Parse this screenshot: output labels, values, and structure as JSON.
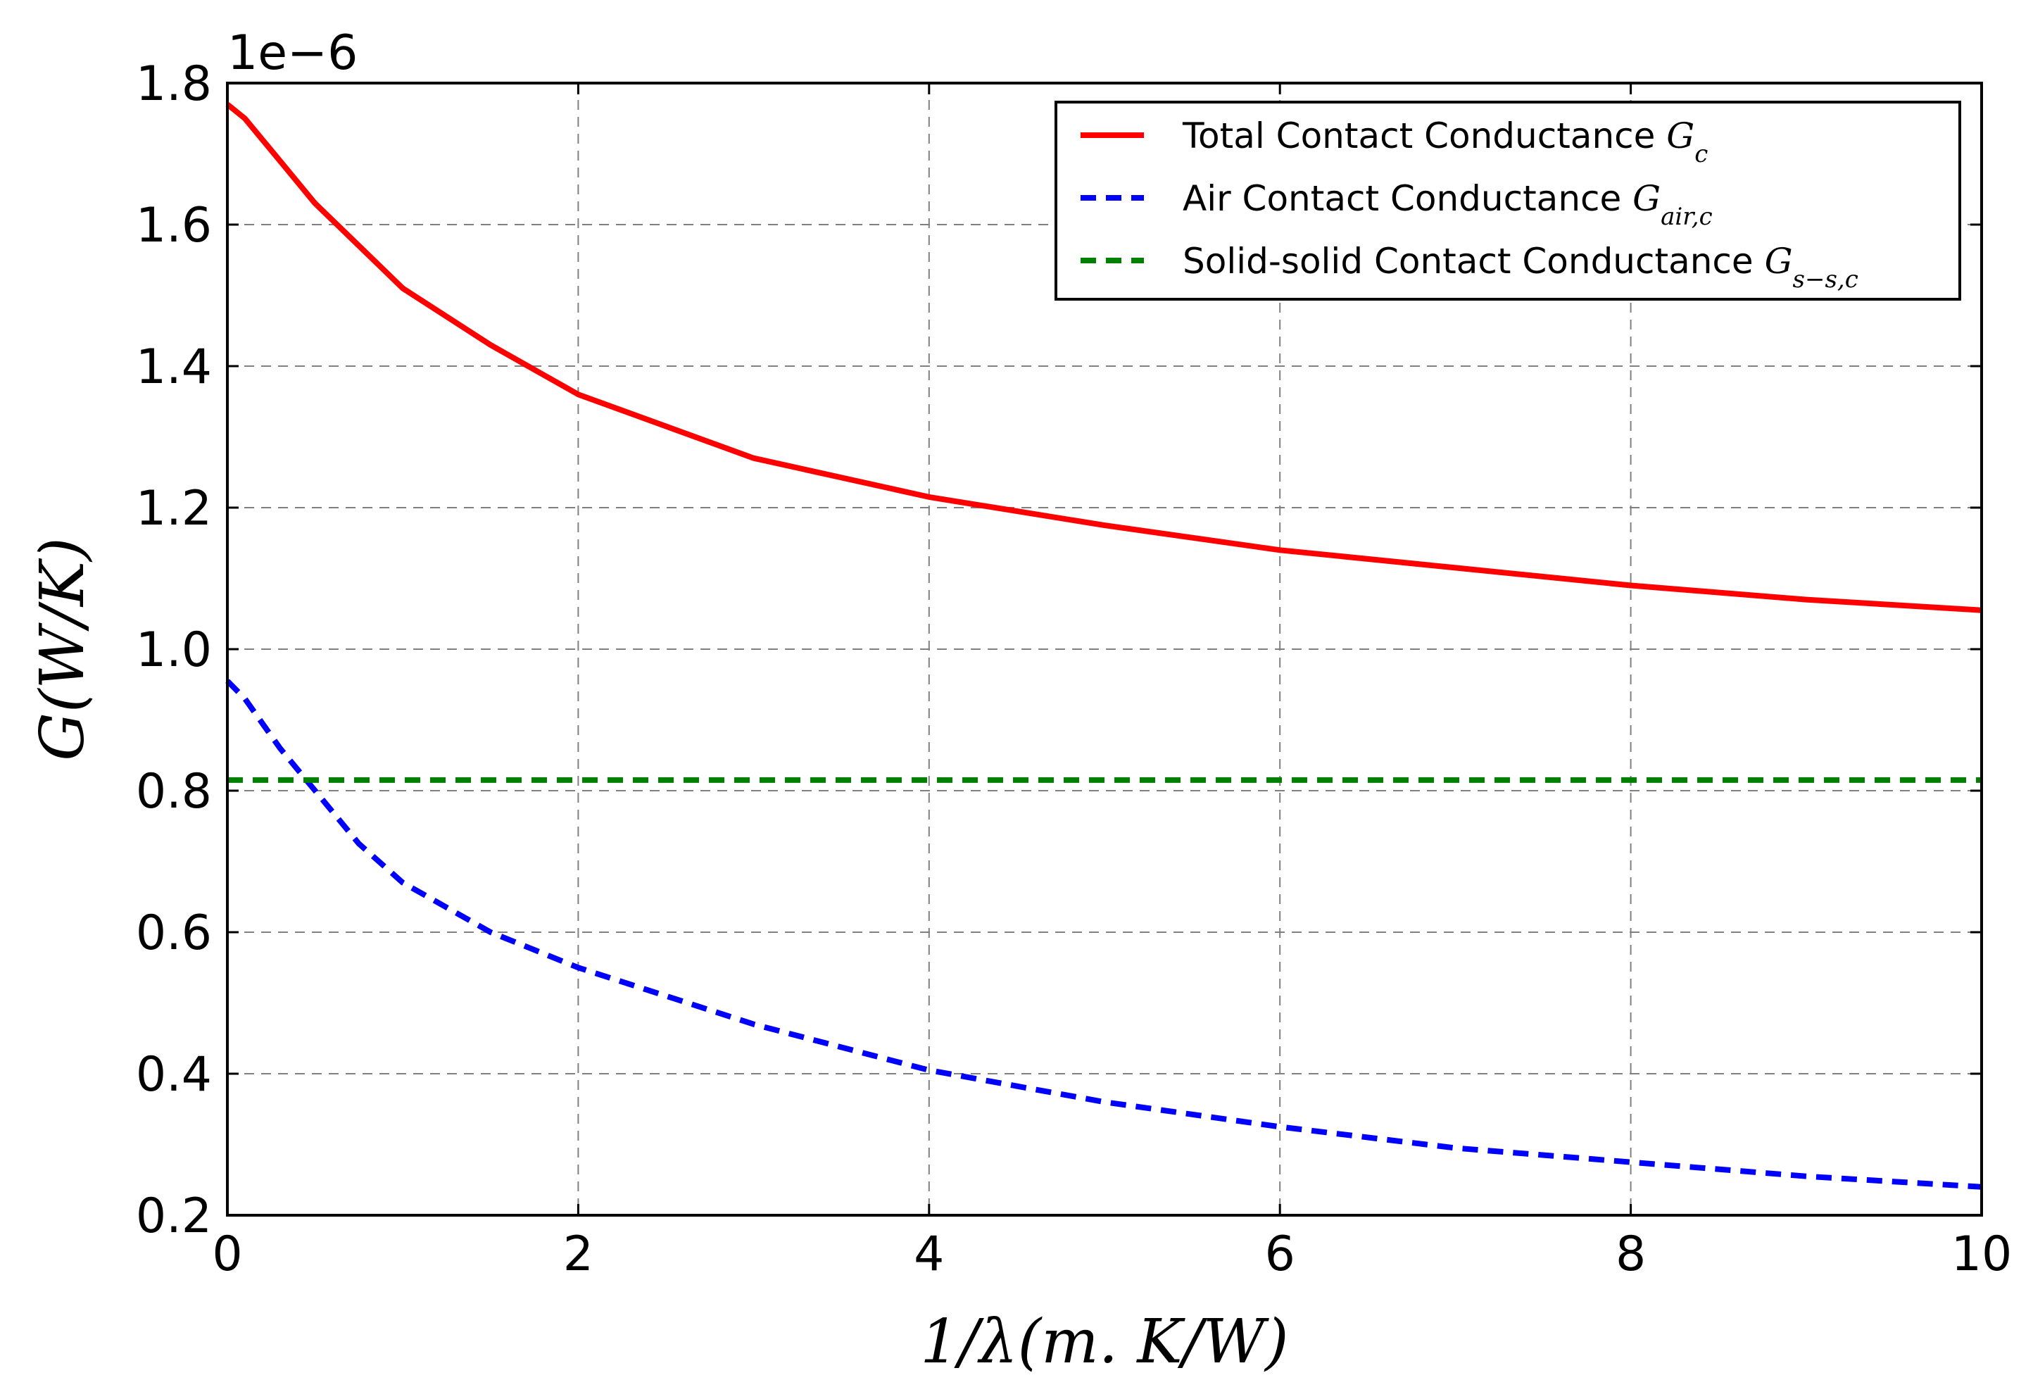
{
  "chart_data": {
    "type": "line",
    "xlabel": "1/λ(m. K/W)",
    "ylabel": "G(W/K)",
    "y_offset_label": "1e−6",
    "xlim": [
      0,
      10
    ],
    "ylim": [
      0.2,
      1.8
    ],
    "y_scale_factor": 1e-06,
    "xticks": [
      0,
      2,
      4,
      6,
      8,
      10
    ],
    "yticks": [
      0.2,
      0.4,
      0.6,
      0.8,
      1.0,
      1.2,
      1.4,
      1.6,
      1.8
    ],
    "xtick_labels": [
      "0",
      "2",
      "4",
      "6",
      "8",
      "10"
    ],
    "ytick_labels": [
      "0.2",
      "0.4",
      "0.6",
      "0.8",
      "1.0",
      "1.2",
      "1.4",
      "1.6",
      "1.8"
    ],
    "grid": true,
    "legend_position": "top-right",
    "series": [
      {
        "name": "Total Contact Conductance",
        "math": "G_c",
        "color": "#ff0000",
        "style": "solid",
        "x": [
          0,
          0.1,
          0.2,
          0.3,
          0.5,
          0.75,
          1,
          1.5,
          2,
          3,
          4,
          5,
          6,
          7,
          8,
          9,
          10
        ],
        "y": [
          1.77,
          1.75,
          1.72,
          1.69,
          1.63,
          1.57,
          1.51,
          1.43,
          1.36,
          1.27,
          1.215,
          1.175,
          1.14,
          1.115,
          1.09,
          1.07,
          1.055
        ]
      },
      {
        "name": "Air Contact Conductance",
        "math": "G_{air,c}",
        "color": "#0000ff",
        "style": "dashed",
        "x": [
          0,
          0.1,
          0.2,
          0.3,
          0.5,
          0.75,
          1,
          1.5,
          2,
          3,
          4,
          5,
          6,
          7,
          8,
          9,
          10
        ],
        "y": [
          0.955,
          0.93,
          0.895,
          0.86,
          0.8,
          0.725,
          0.67,
          0.6,
          0.55,
          0.47,
          0.405,
          0.36,
          0.325,
          0.295,
          0.275,
          0.255,
          0.24
        ]
      },
      {
        "name": "Solid-solid Contact Conductance",
        "math": "G_{s−s,c}",
        "color": "#008000",
        "style": "dashed",
        "x": [
          0,
          10
        ],
        "y": [
          0.815,
          0.815
        ]
      }
    ]
  }
}
